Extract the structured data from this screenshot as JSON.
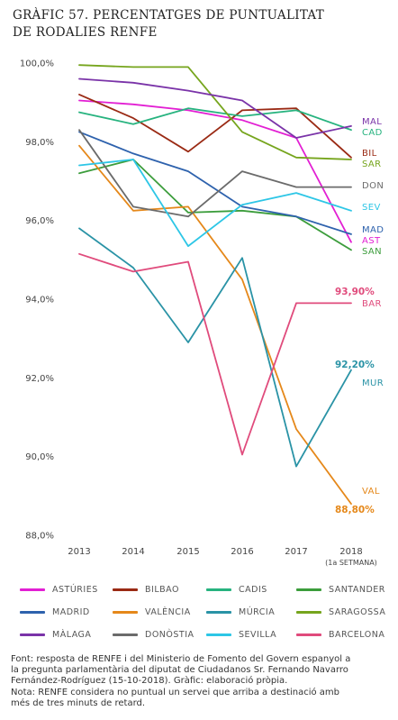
{
  "title": {
    "line1": "GRÀFIC 57. PERCENTATGES DE PUNTUALITAT",
    "line2": "DE RODALIES RENFE"
  },
  "chart_data": {
    "type": "line",
    "x": [
      "2013",
      "2014",
      "2015",
      "2016",
      "2017",
      "2018"
    ],
    "x_sublabel": "(1a SETMANA)",
    "yticks": [
      "100,0%",
      "98,0%",
      "96,0%",
      "94,0%",
      "92,0%",
      "90,0%",
      "88,0%"
    ],
    "ylim": [
      88,
      100
    ],
    "grid": false,
    "series": [
      {
        "name": "ASTÚRIES",
        "abbr": "AST",
        "color": "#e21fd3",
        "values": [
          99.05,
          98.95,
          98.8,
          98.55,
          98.1,
          95.45
        ]
      },
      {
        "name": "BILBAO",
        "abbr": "BIL",
        "color": "#9a2a14",
        "values": [
          99.2,
          98.6,
          97.75,
          98.8,
          98.85,
          97.6
        ]
      },
      {
        "name": "CADIS",
        "abbr": "CAD",
        "color": "#27b37f",
        "values": [
          98.75,
          98.45,
          98.85,
          98.65,
          98.8,
          98.3
        ]
      },
      {
        "name": "SANTANDER",
        "abbr": "SAN",
        "color": "#3c9d3c",
        "values": [
          97.2,
          97.55,
          96.2,
          96.25,
          96.1,
          95.25
        ]
      },
      {
        "name": "MADRID",
        "abbr": "MAD",
        "color": "#2e62ad",
        "values": [
          98.25,
          97.7,
          97.25,
          96.35,
          96.1,
          95.65
        ]
      },
      {
        "name": "VALÈNCIA",
        "abbr": "VAL",
        "color": "#e5881a",
        "values": [
          97.9,
          96.25,
          96.35,
          94.5,
          90.7,
          88.8
        ]
      },
      {
        "name": "MÚRCIA",
        "abbr": "MUR",
        "color": "#2a93a6",
        "values": [
          95.8,
          94.8,
          92.9,
          95.05,
          89.75,
          92.2
        ]
      },
      {
        "name": "SARAGOSSA",
        "abbr": "SAR",
        "color": "#76a51d",
        "values": [
          99.95,
          99.9,
          99.9,
          98.25,
          97.6,
          97.55
        ]
      },
      {
        "name": "MÀLAGA",
        "abbr": "MAL",
        "color": "#7a33a8",
        "values": [
          99.6,
          99.5,
          99.3,
          99.05,
          98.1,
          98.4
        ]
      },
      {
        "name": "DONÒSTIA",
        "abbr": "DON",
        "color": "#6b6b6b",
        "values": [
          98.3,
          96.35,
          96.1,
          97.25,
          96.85,
          96.85
        ]
      },
      {
        "name": "SEVILLA",
        "abbr": "SEV",
        "color": "#2dc6e6",
        "values": [
          97.4,
          97.55,
          95.35,
          96.4,
          96.7,
          96.25
        ]
      },
      {
        "name": "BARCELONA",
        "abbr": "BAR",
        "color": "#e04b7c",
        "values": [
          95.15,
          94.7,
          94.95,
          90.05,
          93.9,
          93.9
        ]
      }
    ],
    "callouts": {
      "barcelona": "93,90%",
      "murcia": "92,20%",
      "valencia": "88,80%"
    },
    "legend_placement": "bottom"
  },
  "footer": {
    "line1": "Font: resposta de RENFE i del Ministerio de Fomento del Govern espanyol a",
    "line2": "la pregunta parlamentària del diputat de Ciudadanos Sr. Fernando Navarro",
    "line3": "Fernández-Rodríguez (15-10-2018). Gràfic: elaboració pròpia.",
    "line4": "Nota: RENFE considera no puntual un servei que arriba a destinació amb",
    "line5": "més de tres minuts de retard."
  }
}
